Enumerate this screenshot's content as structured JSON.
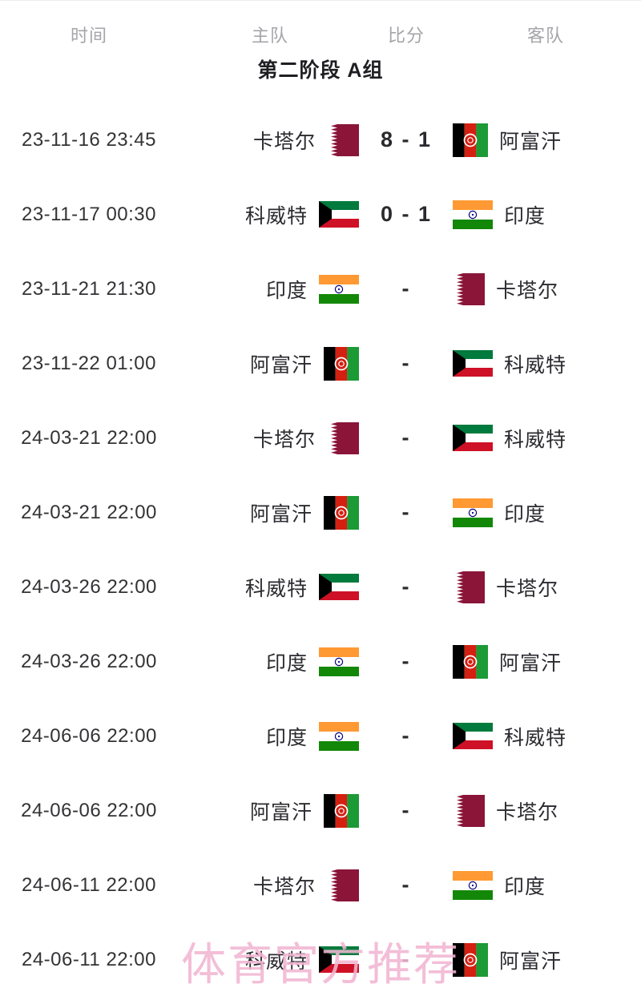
{
  "header": {
    "columns": [
      "时间",
      "主队",
      "比分",
      "客队"
    ]
  },
  "section_title": "第二阶段 A组",
  "watermark": "体育官方推荐",
  "matches": [
    {
      "time": "23-11-16 23:45",
      "home": "卡塔尔",
      "home_flag": "qatar",
      "score": "8 - 1",
      "away": "阿富汗",
      "away_flag": "afghanistan"
    },
    {
      "time": "23-11-17 00:30",
      "home": "科威特",
      "home_flag": "kuwait",
      "score": "0 - 1",
      "away": "印度",
      "away_flag": "india"
    },
    {
      "time": "23-11-21 21:30",
      "home": "印度",
      "home_flag": "india",
      "score": "-",
      "away": "卡塔尔",
      "away_flag": "qatar"
    },
    {
      "time": "23-11-22 01:00",
      "home": "阿富汗",
      "home_flag": "afghanistan",
      "score": "-",
      "away": "科威特",
      "away_flag": "kuwait"
    },
    {
      "time": "24-03-21 22:00",
      "home": "卡塔尔",
      "home_flag": "qatar",
      "score": "-",
      "away": "科威特",
      "away_flag": "kuwait"
    },
    {
      "time": "24-03-21 22:00",
      "home": "阿富汗",
      "home_flag": "afghanistan",
      "score": "-",
      "away": "印度",
      "away_flag": "india"
    },
    {
      "time": "24-03-26 22:00",
      "home": "科威特",
      "home_flag": "kuwait",
      "score": "-",
      "away": "卡塔尔",
      "away_flag": "qatar"
    },
    {
      "time": "24-03-26 22:00",
      "home": "印度",
      "home_flag": "india",
      "score": "-",
      "away": "阿富汗",
      "away_flag": "afghanistan"
    },
    {
      "time": "24-06-06 22:00",
      "home": "印度",
      "home_flag": "india",
      "score": "-",
      "away": "科威特",
      "away_flag": "kuwait"
    },
    {
      "time": "24-06-06 22:00",
      "home": "阿富汗",
      "home_flag": "afghanistan",
      "score": "-",
      "away": "卡塔尔",
      "away_flag": "qatar"
    },
    {
      "time": "24-06-11 22:00",
      "home": "卡塔尔",
      "home_flag": "qatar",
      "score": "-",
      "away": "印度",
      "away_flag": "india"
    },
    {
      "time": "24-06-11 22:00",
      "home": "科威特",
      "home_flag": "kuwait",
      "score": "-",
      "away": "阿富汗",
      "away_flag": "afghanistan"
    }
  ],
  "colors": {
    "header_text": "#a5a5aa",
    "body_text": "#2b2b30",
    "watermark_pink": "#f1b5d1",
    "qatar_maroon": "#8a1538",
    "kuwait_green": "#007a3d",
    "kuwait_red": "#ce1126",
    "india_saffron": "#ff9933",
    "india_green": "#138808",
    "india_navy": "#000080",
    "afghan_black": "#000000",
    "afghan_red": "#d32011",
    "afghan_green": "#1c9a35"
  }
}
